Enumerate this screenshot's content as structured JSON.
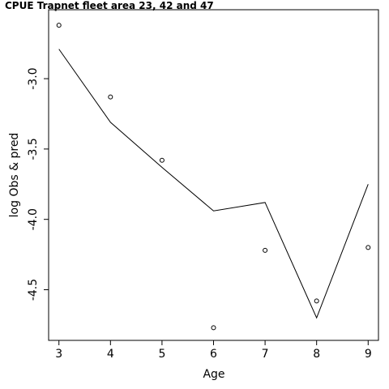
{
  "chart_data": {
    "type": "line",
    "title": "CPUE Trapnet fleet area 23, 42 and 47",
    "xlabel": "Age",
    "ylabel": "log Obs & pred",
    "x": [
      3,
      4,
      5,
      6,
      7,
      8,
      9
    ],
    "xlim": [
      2.8,
      9.2
    ],
    "ylim": [
      -4.86,
      -2.51
    ],
    "xticks": [
      3,
      4,
      5,
      6,
      7,
      8,
      9
    ],
    "yticks": [
      -3.0,
      -3.5,
      -4.0,
      -4.5
    ],
    "ytick_labels": [
      "-3.0",
      "-3.5",
      "-4.0",
      "-4.5"
    ],
    "grid": false,
    "series": [
      {
        "role": "observed",
        "style": "points",
        "values": [
          -2.62,
          -3.13,
          -3.58,
          -4.77,
          -4.22,
          -4.58,
          -4.2
        ]
      },
      {
        "role": "predicted",
        "style": "line",
        "values": [
          -2.79,
          -3.31,
          -3.63,
          -3.94,
          -3.88,
          -4.7,
          -3.75
        ]
      }
    ]
  }
}
